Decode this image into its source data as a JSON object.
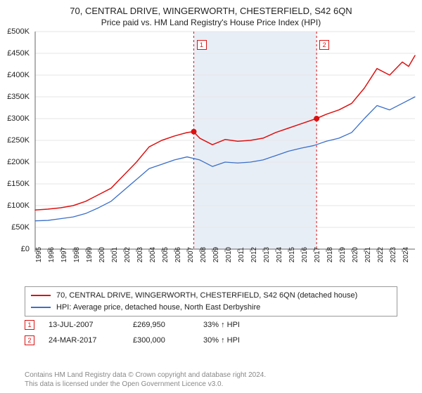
{
  "title_line1": "70, CENTRAL DRIVE, WINGERWORTH, CHESTERFIELD, S42 6QN",
  "title_line2": "Price paid vs. HM Land Registry's House Price Index (HPI)",
  "chart": {
    "type": "line",
    "background_color": "#ffffff",
    "plot_band_color": "#e8eef6",
    "grid_color": "#e6e6e6",
    "axis_color": "#666666",
    "xlim": [
      1995,
      2025
    ],
    "ylim": [
      0,
      500000
    ],
    "ytick_step": 50000,
    "ytick_prefix": "£",
    "ytick_labels": [
      "£0",
      "£50K",
      "£100K",
      "£150K",
      "£200K",
      "£250K",
      "£300K",
      "£350K",
      "£400K",
      "£450K",
      "£500K"
    ],
    "xtick_step": 1,
    "xtick_labels": [
      "1995",
      "1996",
      "1997",
      "1998",
      "1999",
      "2000",
      "2001",
      "2002",
      "2003",
      "2004",
      "2005",
      "2006",
      "2007",
      "2008",
      "2009",
      "2010",
      "2011",
      "2012",
      "2013",
      "2014",
      "2015",
      "2016",
      "2017",
      "2018",
      "2019",
      "2020",
      "2021",
      "2022",
      "2023",
      "2024"
    ],
    "series": [
      {
        "name": "70, CENTRAL DRIVE, WINGERWORTH, CHESTERFIELD, S42 6QN (detached house)",
        "color": "#dd1111",
        "line_width": 1.5,
        "x": [
          1995,
          1996,
          1997,
          1998,
          1999,
          2000,
          2001,
          2002,
          2003,
          2004,
          2005,
          2006,
          2007,
          2007.5,
          2008,
          2009,
          2010,
          2011,
          2012,
          2013,
          2014,
          2015,
          2016,
          2017,
          2017.2,
          2018,
          2019,
          2020,
          2021,
          2022,
          2023,
          2024,
          2024.5,
          2025
        ],
        "y": [
          90000,
          92000,
          95000,
          100000,
          110000,
          125000,
          140000,
          170000,
          200000,
          235000,
          250000,
          260000,
          268000,
          269950,
          255000,
          240000,
          252000,
          248000,
          250000,
          255000,
          268000,
          278000,
          288000,
          298000,
          300000,
          310000,
          320000,
          335000,
          370000,
          415000,
          400000,
          430000,
          420000,
          445000
        ]
      },
      {
        "name": "HPI: Average price, detached house, North East Derbyshire",
        "color": "#3b6fc9",
        "line_width": 1.3,
        "x": [
          1995,
          1996,
          1997,
          1998,
          1999,
          2000,
          2001,
          2002,
          2003,
          2004,
          2005,
          2006,
          2007,
          2008,
          2009,
          2010,
          2011,
          2012,
          2013,
          2014,
          2015,
          2016,
          2017,
          2018,
          2019,
          2020,
          2021,
          2022,
          2023,
          2024,
          2025
        ],
        "y": [
          65000,
          66000,
          70000,
          74000,
          82000,
          95000,
          110000,
          135000,
          160000,
          185000,
          195000,
          205000,
          212000,
          205000,
          190000,
          200000,
          198000,
          200000,
          205000,
          215000,
          225000,
          232000,
          238000,
          248000,
          255000,
          268000,
          300000,
          330000,
          320000,
          335000,
          350000
        ]
      }
    ],
    "sale_markers": [
      {
        "label": "1",
        "x": 2007.53,
        "y": 269950,
        "box_top_y": 480000,
        "color": "#dd1111"
      },
      {
        "label": "2",
        "x": 2017.23,
        "y": 300000,
        "box_top_y": 480000,
        "color": "#dd1111"
      }
    ],
    "sale_point_radius": 4,
    "vline_dash": "3,3",
    "tick_fontsize": 11
  },
  "legend": {
    "items": [
      {
        "color": "#dd1111",
        "label": "70, CENTRAL DRIVE, WINGERWORTH, CHESTERFIELD, S42 6QN (detached house)"
      },
      {
        "color": "#3b6fc9",
        "label": "HPI: Average price, detached house, North East Derbyshire"
      }
    ]
  },
  "sales": [
    {
      "num": "1",
      "color": "#dd1111",
      "date": "13-JUL-2007",
      "price": "£269,950",
      "delta": "33% ↑ HPI"
    },
    {
      "num": "2",
      "color": "#dd1111",
      "date": "24-MAR-2017",
      "price": "£300,000",
      "delta": "30% ↑ HPI"
    }
  ],
  "footer_line1": "Contains HM Land Registry data © Crown copyright and database right 2024.",
  "footer_line2": "This data is licensed under the Open Government Licence v3.0."
}
